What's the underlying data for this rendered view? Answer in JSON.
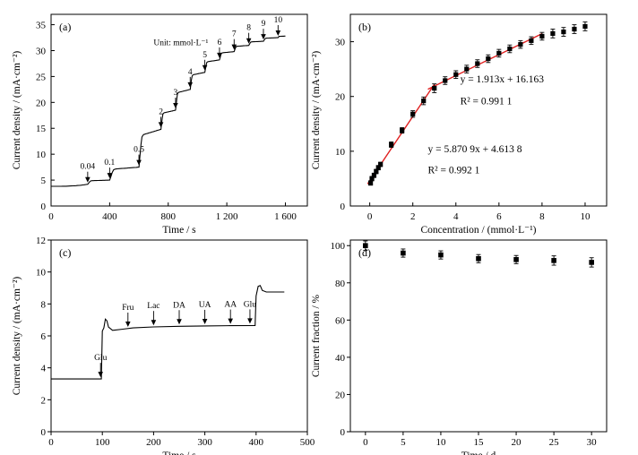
{
  "chart_data": [
    {
      "panel": "(a)",
      "type": "line",
      "xlabel": "Time / s",
      "ylabel": "Current density / (mA·cm⁻²)",
      "xlim": [
        0,
        1750
      ],
      "ylim": [
        0,
        37
      ],
      "xticks": [
        0,
        400,
        800,
        1200,
        1600
      ],
      "xtick_labels": [
        "0",
        "400",
        "800",
        "1 200",
        "1 600"
      ],
      "yticks": [
        0,
        5,
        10,
        15,
        20,
        25,
        30,
        35
      ],
      "unit_note": "Unit: mmol·L⁻¹",
      "levels": [
        [
          0,
          3.8
        ],
        [
          250,
          4.2
        ],
        [
          400,
          5.0
        ],
        [
          600,
          7.5
        ],
        [
          750,
          14.8
        ],
        [
          850,
          18.5
        ],
        [
          950,
          22.5
        ],
        [
          1050,
          25.8
        ],
        [
          1150,
          28.2
        ],
        [
          1250,
          29.8
        ],
        [
          1350,
          31.0
        ],
        [
          1450,
          31.8
        ],
        [
          1550,
          32.5
        ],
        [
          1600,
          32.8
        ]
      ],
      "annotations": [
        {
          "label": "0.04",
          "x": 250,
          "y": 4.2
        },
        {
          "label": "0.1",
          "x": 400,
          "y": 5.0
        },
        {
          "label": "0.5",
          "x": 600,
          "y": 7.5
        },
        {
          "label": "2",
          "x": 750,
          "y": 14.8
        },
        {
          "label": "3",
          "x": 850,
          "y": 18.5
        },
        {
          "label": "4",
          "x": 950,
          "y": 22.5
        },
        {
          "label": "5",
          "x": 1050,
          "y": 25.8
        },
        {
          "label": "6",
          "x": 1150,
          "y": 28.2
        },
        {
          "label": "7",
          "x": 1250,
          "y": 29.8
        },
        {
          "label": "8",
          "x": 1350,
          "y": 31.0
        },
        {
          "label": "9",
          "x": 1450,
          "y": 31.8
        },
        {
          "label": "10",
          "x": 1550,
          "y": 32.5
        }
      ]
    },
    {
      "panel": "(b)",
      "type": "scatter",
      "xlabel": "Concentration / (mmol·L⁻¹)",
      "ylabel": "Current density / (mA·cm⁻²)",
      "xlim": [
        -0.9,
        11
      ],
      "ylim": [
        0,
        35
      ],
      "xticks": [
        0,
        2,
        4,
        6,
        8,
        10
      ],
      "yticks": [
        0,
        10,
        20,
        30
      ],
      "points": [
        {
          "x": 0.04,
          "y": 4.2,
          "err": 0.4
        },
        {
          "x": 0.1,
          "y": 5.0,
          "err": 0.4
        },
        {
          "x": 0.2,
          "y": 5.6,
          "err": 0.4
        },
        {
          "x": 0.3,
          "y": 6.3,
          "err": 0.4
        },
        {
          "x": 0.4,
          "y": 7.0,
          "err": 0.4
        },
        {
          "x": 0.5,
          "y": 7.6,
          "err": 0.4
        },
        {
          "x": 1.0,
          "y": 11.2,
          "err": 0.5
        },
        {
          "x": 1.5,
          "y": 13.8,
          "err": 0.5
        },
        {
          "x": 2.0,
          "y": 16.8,
          "err": 0.6
        },
        {
          "x": 2.5,
          "y": 19.2,
          "err": 0.7
        },
        {
          "x": 3.0,
          "y": 21.5,
          "err": 0.8
        },
        {
          "x": 3.5,
          "y": 22.9,
          "err": 0.7
        },
        {
          "x": 4.0,
          "y": 24.0,
          "err": 0.7
        },
        {
          "x": 4.5,
          "y": 25.0,
          "err": 0.7
        },
        {
          "x": 5.0,
          "y": 26.0,
          "err": 0.7
        },
        {
          "x": 5.5,
          "y": 26.9,
          "err": 0.7
        },
        {
          "x": 6.0,
          "y": 27.9,
          "err": 0.7
        },
        {
          "x": 6.5,
          "y": 28.7,
          "err": 0.7
        },
        {
          "x": 7.0,
          "y": 29.5,
          "err": 0.7
        },
        {
          "x": 7.5,
          "y": 30.2,
          "err": 0.7
        },
        {
          "x": 8.0,
          "y": 31.0,
          "err": 0.7
        },
        {
          "x": 8.5,
          "y": 31.5,
          "err": 0.8
        },
        {
          "x": 9.0,
          "y": 31.8,
          "err": 0.8
        },
        {
          "x": 9.5,
          "y": 32.3,
          "err": 0.8
        },
        {
          "x": 10.0,
          "y": 32.8,
          "err": 0.8
        }
      ],
      "fits": [
        {
          "slope": 5.8709,
          "intercept": 4.6138,
          "x_range": [
            -0.1,
            3.0
          ],
          "equation": "y = 5.870 9x + 4.613 8",
          "r2": "R² = 0.992 1"
        },
        {
          "slope": 1.913,
          "intercept": 16.163,
          "x_range": [
            2.7,
            8.0
          ],
          "equation": "y = 1.913x + 16.163",
          "r2": "R² = 0.991 1"
        }
      ]
    },
    {
      "panel": "(c)",
      "type": "line",
      "xlabel": "Time / s",
      "ylabel": "Current density / (mA·cm⁻²)",
      "xlim": [
        0,
        500
      ],
      "ylim": [
        0,
        12
      ],
      "xticks": [
        0,
        100,
        200,
        300,
        400,
        500
      ],
      "yticks": [
        0,
        2,
        4,
        6,
        8,
        10,
        12
      ],
      "annotations": [
        {
          "label": "Glu",
          "x": 100,
          "y": 3.3
        },
        {
          "label": "Fru",
          "x": 150,
          "y": 6.45
        },
        {
          "label": "Lac",
          "x": 200,
          "y": 6.55
        },
        {
          "label": "DA",
          "x": 250,
          "y": 6.6
        },
        {
          "label": "UA",
          "x": 300,
          "y": 6.62
        },
        {
          "label": "AA",
          "x": 350,
          "y": 6.64
        },
        {
          "label": "Glu",
          "x": 388,
          "y": 6.65
        }
      ]
    },
    {
      "panel": "(d)",
      "type": "scatter",
      "xlabel": "Time / d",
      "ylabel": "Current fraction / %",
      "xlim": [
        -2,
        32
      ],
      "ylim": [
        0,
        103
      ],
      "xticks": [
        0,
        5,
        10,
        15,
        20,
        25,
        30
      ],
      "yticks": [
        0,
        20,
        40,
        60,
        80,
        100
      ],
      "points": [
        {
          "x": 0,
          "y": 100,
          "err": 2.5
        },
        {
          "x": 5,
          "y": 96,
          "err": 2.2
        },
        {
          "x": 10,
          "y": 95,
          "err": 2.2
        },
        {
          "x": 15,
          "y": 93,
          "err": 2.2
        },
        {
          "x": 20,
          "y": 92.5,
          "err": 2.2
        },
        {
          "x": 25,
          "y": 92,
          "err": 2.5
        },
        {
          "x": 30,
          "y": 91,
          "err": 2.5
        }
      ]
    }
  ]
}
